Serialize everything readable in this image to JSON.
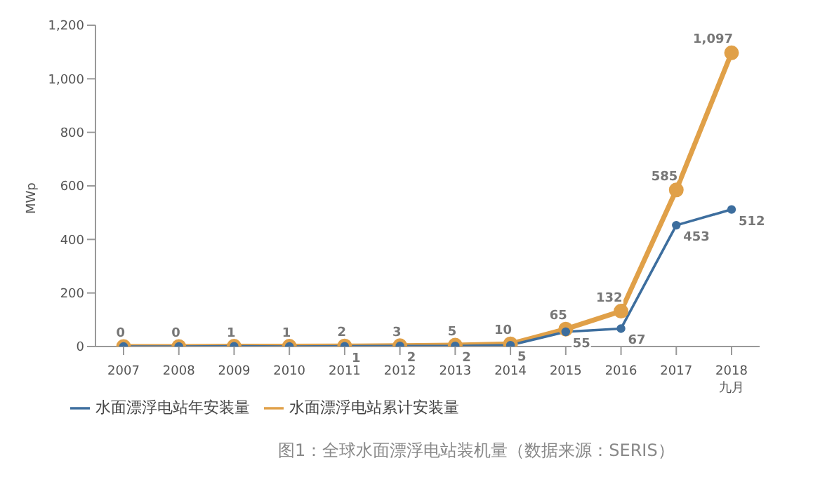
{
  "chart_data": {
    "type": "line",
    "ylabel": "MWp",
    "categories": [
      "2007",
      "2008",
      "2009",
      "2010",
      "2011",
      "2012",
      "2013",
      "2014",
      "2015",
      "2016",
      "2017",
      "2018\n九月"
    ],
    "series": [
      {
        "name": "水面漂浮电站累计安装量",
        "color": "#e0a048",
        "values": [
          0,
          0,
          1,
          1,
          2,
          3,
          5,
          10,
          65,
          132,
          585,
          1097
        ],
        "value_labels": [
          "0",
          "0",
          "1",
          "1",
          "2",
          "3",
          "5",
          "10",
          "65",
          "132",
          "585",
          "1,097"
        ]
      },
      {
        "name": "水面漂浮电站年安装量",
        "color": "#3d6e9e",
        "values": [
          0,
          0,
          1,
          0,
          1,
          2,
          2,
          5,
          55,
          67,
          453,
          512
        ],
        "value_labels": [
          null,
          null,
          null,
          null,
          "1",
          "2",
          "2",
          "5",
          "55",
          "67",
          "453",
          "512"
        ]
      }
    ],
    "ylim": [
      0,
      1200
    ],
    "yticks": [
      0,
      200,
      400,
      600,
      800,
      {
        "value": 1000,
        "label": "1,000"
      },
      {
        "value": 1200,
        "label": "1,200"
      }
    ],
    "grid": false,
    "legend": "bottom left",
    "marker": "circle",
    "line_style": "solid",
    "annotations": [
      "图1：全球水面漂浮电站装机量（数据来源：SERIS）"
    ]
  }
}
